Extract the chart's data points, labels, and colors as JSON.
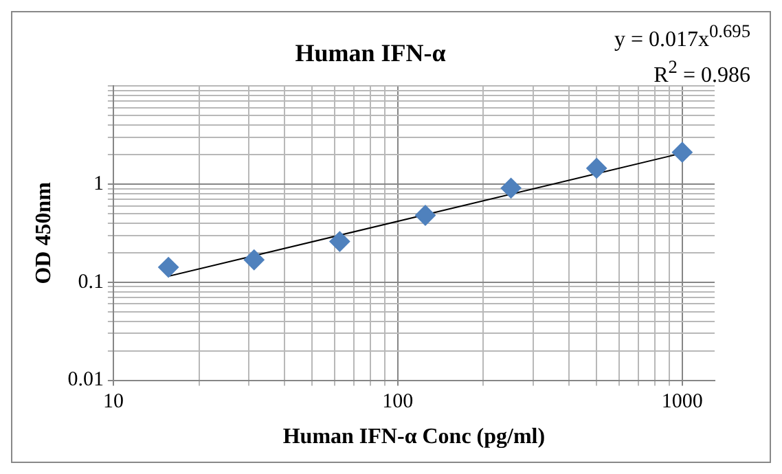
{
  "chart_data": {
    "type": "scatter",
    "title": "Human IFN-α",
    "xlabel": "Human IFN-α Conc (pg/ml)",
    "ylabel": "OD 450nm",
    "annotations": [
      "y = 0.017x$^{0.695}$",
      "R$^{2}$ = 0.986"
    ],
    "log": "xy",
    "grid": true,
    "legend": false,
    "marker": "diamond",
    "xlim": [
      10,
      1300
    ],
    "xticks": [
      10,
      100,
      1000
    ],
    "ylim": [
      0.01,
      10
    ],
    "yticks": [
      0.01,
      0.1,
      1
    ],
    "series": [
      {
        "color": "#4f81bd",
        "x": [
          15.625,
          31.25,
          62.5,
          125,
          250,
          500,
          1000
        ],
        "values": [
          0.142,
          0.169,
          0.26,
          0.48,
          0.91,
          1.45,
          2.11
        ]
      },
      {
        "type": "line",
        "color": "#000000",
        "marker": "none",
        "line_style": "solid",
        "x": [
          15.625,
          1000
        ],
        "values": [
          0.115,
          2.07
        ]
      }
    ]
  }
}
